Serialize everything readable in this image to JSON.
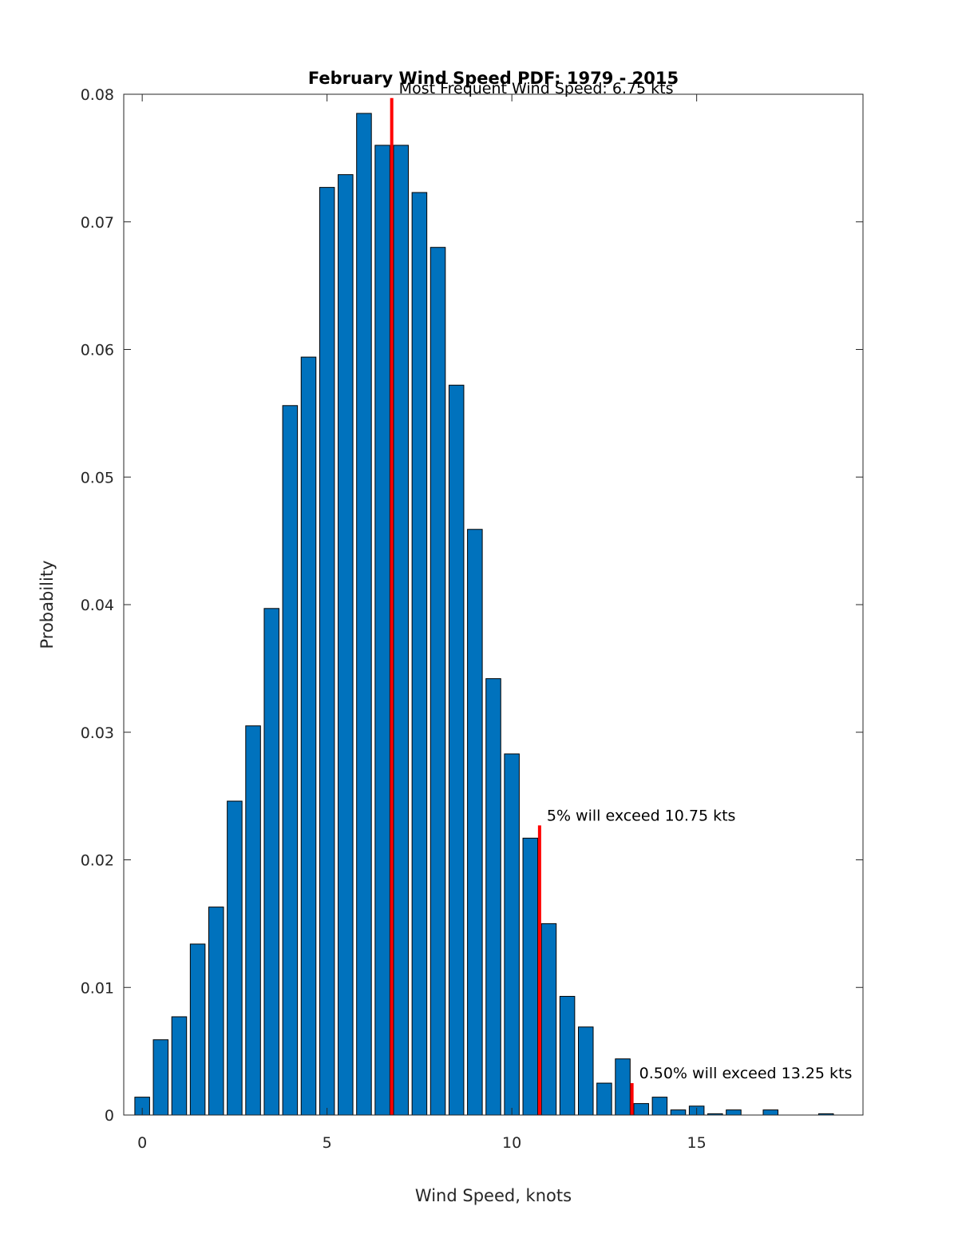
{
  "chart_data": {
    "type": "bar",
    "title": "February Wind Speed PDF: 1979 - 2015",
    "xlabel": "Wind Speed, knots",
    "ylabel": "Probability",
    "xlim": [
      -0.5,
      19.5
    ],
    "ylim": [
      0,
      0.08
    ],
    "xticks": [
      0,
      5,
      10,
      15
    ],
    "xtick_labels": [
      "0",
      "5",
      "10",
      "15"
    ],
    "yticks": [
      0,
      0.01,
      0.02,
      0.03,
      0.04,
      0.05,
      0.06,
      0.07,
      0.08
    ],
    "ytick_labels": [
      "0",
      "0.01",
      "0.02",
      "0.03",
      "0.04",
      "0.05",
      "0.06",
      "0.07",
      "0.08"
    ],
    "bar_width": 0.4,
    "bar_color": "#0072bd",
    "x": [
      0,
      0.5,
      1,
      1.5,
      2,
      2.5,
      3,
      3.5,
      4,
      4.5,
      5,
      5.5,
      6,
      6.5,
      7,
      7.5,
      8,
      8.5,
      9,
      9.5,
      10,
      10.5,
      11,
      11.5,
      12,
      12.5,
      13,
      13.5,
      14,
      14.5,
      15,
      15.5,
      16,
      16.5,
      17,
      17.5,
      18,
      18.5
    ],
    "values": [
      0.0014,
      0.0059,
      0.0077,
      0.0134,
      0.0163,
      0.0246,
      0.0305,
      0.0397,
      0.0556,
      0.0594,
      0.0727,
      0.0737,
      0.0785,
      0.076,
      0.076,
      0.0723,
      0.068,
      0.0572,
      0.0459,
      0.0342,
      0.0283,
      0.0217,
      0.015,
      0.0093,
      0.0069,
      0.0025,
      0.0044,
      0.0009,
      0.0014,
      0.0004,
      0.0007,
      0.0001,
      0.0004,
      0.0,
      0.0004,
      0.0,
      0.0,
      0.0001
    ],
    "annotations": [
      {
        "x": 6.75,
        "y_top": 0.0797,
        "text": "Most Frequent Wind Speed: 6.75 kts",
        "color": "#ff0000"
      },
      {
        "x": 10.75,
        "y_top": 0.0227,
        "text": "5% will exceed 10.75 kts",
        "color": "#ff0000"
      },
      {
        "x": 13.25,
        "y_top": 0.0025,
        "text": "0.50% will exceed 13.25 kts",
        "color": "#ff0000"
      }
    ]
  }
}
